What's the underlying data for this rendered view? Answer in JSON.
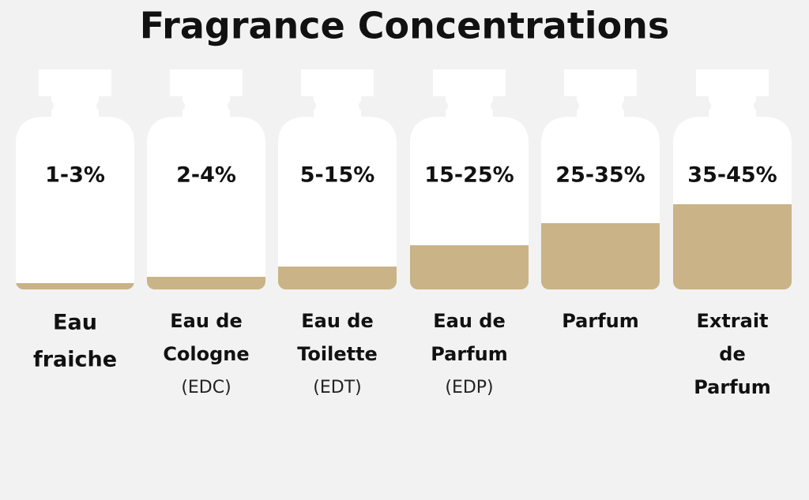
{
  "title": "Fragrance Concentrations",
  "bottles": [
    {
      "concentration": "1-3%",
      "name": [
        "Eau",
        "fraiche"
      ]
    },
    {
      "concentration": "2-4%",
      "name": [
        "Eau de",
        "Cologne"
      ],
      "abbreviation": "(EDC)"
    },
    {
      "concentration": "5-15%",
      "name": [
        "Eau de",
        "Toilette"
      ],
      "abbreviation": "(EDT)"
    },
    {
      "concentration": "15-25%",
      "name": [
        "Eau de",
        "Parfum"
      ],
      "abbreviation": "(EDP)"
    },
    {
      "concentration": "25-35%",
      "name": [
        "Parfum"
      ]
    },
    {
      "concentration": "35-45%",
      "name": [
        "Extrait",
        "de",
        "Parfum"
      ]
    }
  ]
}
